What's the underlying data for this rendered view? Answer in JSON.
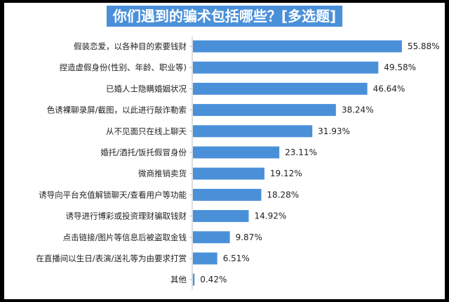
{
  "chart_data": {
    "type": "bar",
    "orientation": "horizontal",
    "title": "你们遇到的骗术包括哪些？[多选题]",
    "categories": [
      "假装恋爱，以各种目的索要钱财",
      "捏造虚假身份(性别、年龄、职业等)",
      "已婚人士隐瞒婚姻状况",
      "色诱裸聊录屏/截图，以此进行敲诈勒索",
      "从不见面只在线上聊天",
      "婚托/酒托/饭托假冒身份",
      "微商推销卖货",
      "诱导向平台充值解锁聊天/查看用户等功能",
      "诱导进行博彩或投资理财骗取钱财",
      "点击链接/图片等信息后被盗取金钱",
      "在直播间以生日/表演/送礼等为由要求打赏",
      "其他"
    ],
    "values": [
      55.88,
      49.58,
      46.64,
      38.24,
      31.93,
      23.11,
      19.12,
      18.28,
      14.92,
      9.87,
      6.51,
      0.42
    ],
    "value_labels": [
      "55.88%",
      "49.58%",
      "46.64%",
      "38.24%",
      "31.93%",
      "23.11%",
      "19.12%",
      "18.28%",
      "14.92%",
      "9.87%",
      "6.51%",
      "0.42%"
    ],
    "bar_color": "#4a90d9",
    "title_bg_color": "#4a90d9"
  }
}
